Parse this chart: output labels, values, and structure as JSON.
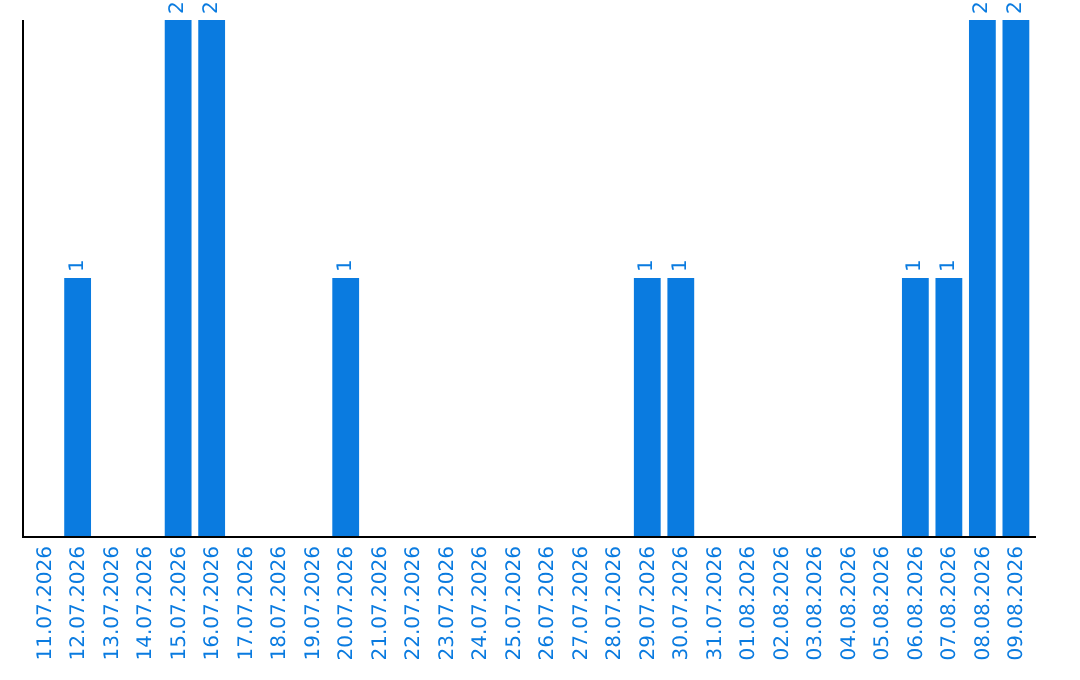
{
  "chart_data": {
    "type": "bar",
    "categories": [
      "11.07.2026",
      "12.07.2026",
      "13.07.2026",
      "14.07.2026",
      "15.07.2026",
      "16.07.2026",
      "17.07.2026",
      "18.07.2026",
      "19.07.2026",
      "20.07.2026",
      "21.07.2026",
      "22.07.2026",
      "23.07.2026",
      "24.07.2026",
      "25.07.2026",
      "26.07.2026",
      "27.07.2026",
      "28.07.2026",
      "29.07.2026",
      "30.07.2026",
      "31.07.2026",
      "01.08.2026",
      "02.08.2026",
      "03.08.2026",
      "04.08.2026",
      "05.08.2026",
      "06.08.2026",
      "07.08.2026",
      "08.08.2026",
      "09.08.2026"
    ],
    "values": [
      0,
      1,
      0,
      0,
      2,
      2,
      0,
      0,
      0,
      1,
      0,
      0,
      0,
      0,
      0,
      0,
      0,
      0,
      1,
      1,
      0,
      0,
      0,
      0,
      0,
      0,
      1,
      1,
      2,
      2
    ],
    "value_labels": [
      null,
      "1",
      null,
      null,
      "2",
      "2",
      null,
      null,
      null,
      "1",
      null,
      null,
      null,
      null,
      null,
      null,
      null,
      null,
      "1",
      "1",
      null,
      null,
      null,
      null,
      null,
      null,
      "1",
      "1",
      "2",
      "2"
    ],
    "color": "#0a7be0",
    "ylim": [
      0,
      2
    ],
    "tick_labels": "x",
    "grid": false,
    "legend": false
  }
}
